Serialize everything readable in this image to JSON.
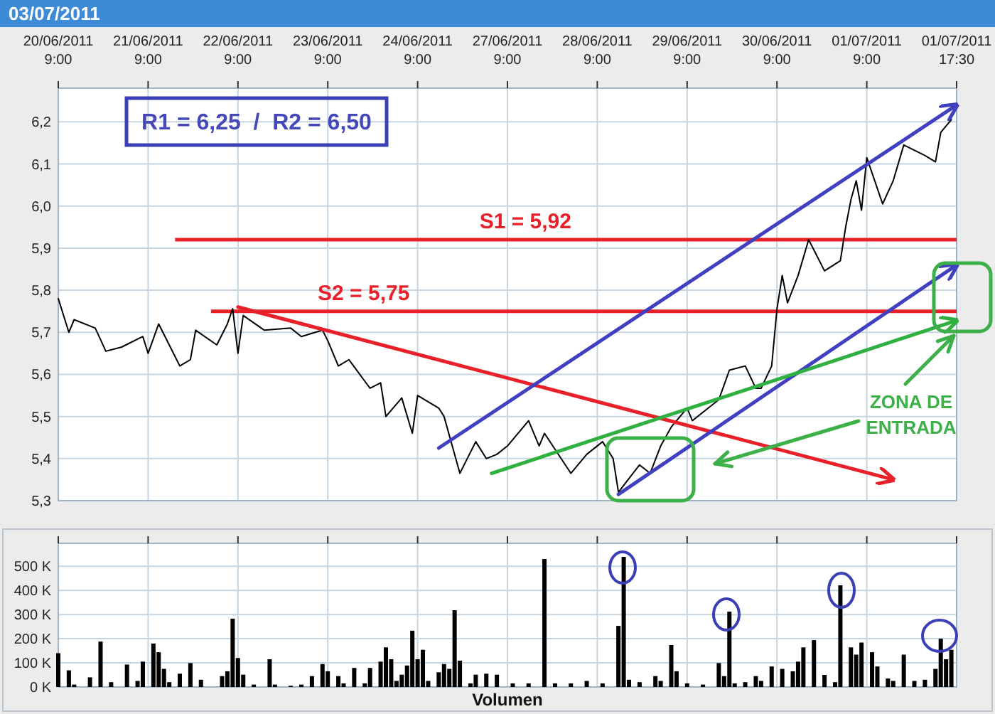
{
  "chart_data": [
    {
      "type": "line",
      "title": "03/07/2011",
      "ylim": [
        5.3,
        6.28
      ],
      "categories": [
        "20/06/2011\n9:00",
        null,
        null,
        null,
        null,
        null,
        null,
        null,
        null,
        null,
        null,
        null,
        null,
        null,
        null,
        null,
        null,
        "21/06/2011\n9:00",
        null,
        null,
        null,
        null,
        null,
        null,
        null,
        null,
        null,
        null,
        null,
        null,
        null,
        null,
        null,
        null,
        "22/06/2011\n9:00",
        null,
        null,
        null,
        null,
        null,
        null,
        null,
        null,
        null,
        null,
        null,
        null,
        null,
        null,
        null,
        null,
        "23/06/2011\n9:00",
        null,
        null,
        null,
        null,
        null,
        null,
        null,
        null,
        null,
        null,
        null,
        null,
        null,
        null,
        null,
        null,
        "24/06/2011\n9:00",
        null,
        null,
        null,
        null,
        null,
        null,
        null,
        null,
        null,
        null,
        null,
        null,
        null,
        null,
        null,
        null,
        "27/06/2011\n9:00",
        null,
        null,
        null,
        null,
        null,
        null,
        null,
        null,
        null,
        null,
        null,
        null,
        null,
        null,
        null,
        null,
        "28/06/2011\n9:00",
        null,
        null,
        null,
        null,
        null,
        null,
        null,
        null,
        null,
        null,
        null,
        null,
        null,
        null,
        null,
        null,
        "29/06/2011\n9:00",
        null,
        null,
        null,
        null,
        null,
        null,
        null,
        null,
        null,
        null,
        null,
        null,
        null,
        null,
        null,
        null,
        "30/06/2011\n9:00",
        null,
        null,
        null,
        null,
        null,
        null,
        null,
        null,
        null,
        null,
        null,
        null,
        null,
        null,
        null,
        null,
        "01/07/2011\n9:00",
        null,
        null,
        null,
        null,
        null,
        null,
        null,
        null,
        null,
        null,
        null,
        null,
        null,
        null,
        null,
        null,
        "01/07/2011\n17:30"
      ],
      "yticks": [
        {
          "value": 5.3,
          "label": "5,3"
        },
        {
          "value": 5.4,
          "label": "5,4"
        },
        {
          "value": 5.5,
          "label": "5,5"
        },
        {
          "value": 5.6,
          "label": "5,6"
        },
        {
          "value": 5.7,
          "label": "5,7"
        },
        {
          "value": 5.8,
          "label": "5,8"
        },
        {
          "value": 5.9,
          "label": "5,9"
        },
        {
          "value": 6.0,
          "label": "6,0"
        },
        {
          "value": 6.1,
          "label": "6,1"
        },
        {
          "value": 6.2,
          "label": "6,2"
        }
      ],
      "grid": true,
      "series": [
        {
          "color": "#000000",
          "values": [
            5.78,
            null,
            5.7,
            5.73,
            null,
            null,
            null,
            5.71,
            null,
            5.655,
            null,
            null,
            5.665,
            null,
            null,
            null,
            5.69,
            5.65,
            null,
            5.72,
            null,
            null,
            null,
            5.62,
            null,
            5.635,
            5.705,
            null,
            null,
            null,
            5.67,
            null,
            5.72,
            5.756,
            5.65,
            5.74,
            null,
            null,
            null,
            5.705,
            null,
            null,
            null,
            null,
            5.71,
            null,
            5.69,
            null,
            null,
            null,
            5.705,
            5.68,
            null,
            5.62,
            null,
            5.635,
            null,
            null,
            null,
            5.567,
            null,
            5.58,
            5.5,
            null,
            null,
            5.544,
            null,
            5.46,
            5.55,
            null,
            null,
            null,
            5.52,
            5.5,
            null,
            null,
            5.365,
            null,
            null,
            5.44,
            null,
            5.4,
            null,
            5.41,
            null,
            5.43,
            null,
            null,
            null,
            5.49,
            null,
            5.43,
            5.46,
            null,
            null,
            null,
            null,
            5.365,
            null,
            null,
            5.41,
            null,
            null,
            5.44,
            null,
            5.4,
            5.32,
            null,
            null,
            null,
            5.385,
            null,
            5.365,
            null,
            5.43,
            null,
            5.475,
            null,
            null,
            5.52,
            5.49,
            null,
            null,
            5.52,
            null,
            5.54,
            null,
            5.61,
            null,
            null,
            5.62,
            null,
            5.567,
            5.567,
            null,
            5.62,
            5.755,
            5.835,
            5.77,
            null,
            5.835,
            null,
            5.92,
            null,
            null,
            5.846,
            null,
            null,
            5.87,
            5.95,
            6.015,
            6.06,
            5.99,
            6.115,
            null,
            null,
            6.005,
            null,
            6.06,
            null,
            6.145,
            null,
            null,
            null,
            6.12,
            null,
            6.105,
            6.175,
            null,
            6.205,
            null
          ]
        },
        {
          "color": "#e8202a",
          "values": [
            null,
            null,
            null,
            null,
            null,
            null,
            null,
            null,
            null,
            null,
            null,
            null,
            null,
            null,
            null,
            null,
            null,
            null,
            null,
            null,
            null,
            null,
            null,
            null,
            null,
            null,
            null,
            null,
            null,
            null,
            null,
            null,
            null,
            null,
            5.76,
            null,
            null,
            null,
            null,
            null,
            null,
            null,
            null,
            null,
            null,
            null,
            null,
            null,
            null,
            null,
            null,
            null,
            null,
            null,
            null,
            null,
            null,
            null,
            null,
            null,
            null,
            null,
            null,
            null,
            null,
            null,
            null,
            null,
            null,
            null,
            null,
            null,
            null,
            null,
            null,
            null,
            null,
            null,
            null,
            null,
            null,
            null,
            null,
            null,
            null,
            null,
            null,
            null,
            null,
            null,
            null,
            null,
            null,
            null,
            null,
            null,
            null,
            null,
            null,
            null,
            null,
            null,
            null,
            null,
            null,
            null,
            null,
            null,
            null,
            null,
            null,
            null,
            null,
            null,
            null,
            null,
            null,
            null,
            null,
            null,
            null,
            null,
            null,
            null,
            null,
            null,
            null,
            null,
            null,
            null,
            null,
            null,
            null,
            null,
            null,
            null,
            null,
            null,
            null,
            null,
            null,
            null,
            null,
            null,
            null,
            null,
            null,
            null,
            null,
            null,
            null,
            null,
            null,
            null,
            null,
            null,
            null,
            null,
            5.35,
            null,
            null,
            null,
            null,
            null,
            null,
            null,
            null,
            null,
            null,
            null,
            null
          ]
        },
        {
          "color": "#4040c0",
          "values": [
            null,
            null,
            null,
            null,
            null,
            null,
            null,
            null,
            null,
            null,
            null,
            null,
            null,
            null,
            null,
            null,
            null,
            null,
            null,
            null,
            null,
            null,
            null,
            null,
            null,
            null,
            null,
            null,
            null,
            null,
            null,
            null,
            null,
            null,
            null,
            null,
            null,
            null,
            null,
            null,
            null,
            null,
            null,
            null,
            null,
            null,
            null,
            null,
            null,
            null,
            null,
            null,
            null,
            null,
            null,
            null,
            null,
            null,
            null,
            null,
            null,
            null,
            null,
            null,
            null,
            null,
            null,
            null,
            null,
            null,
            null,
            null,
            5.425,
            null,
            null,
            null,
            null,
            null,
            null,
            null,
            null,
            null,
            null,
            null,
            null,
            null,
            null,
            null,
            null,
            null,
            null,
            null,
            null,
            null,
            null,
            null,
            null,
            null,
            null,
            null,
            null,
            null,
            null,
            null,
            null,
            null,
            null,
            null,
            null,
            null,
            null,
            null,
            null,
            null,
            null,
            null,
            null,
            null,
            null,
            null,
            null,
            null,
            null,
            null,
            null,
            null,
            null,
            null,
            null,
            null,
            null,
            null,
            null,
            null,
            null,
            null,
            null,
            null,
            null,
            null,
            null,
            null,
            null,
            null,
            null,
            null,
            null,
            null,
            null,
            null,
            null,
            null,
            null,
            null,
            null,
            null,
            null,
            null,
            null,
            null,
            null,
            null,
            null,
            null,
            null,
            null,
            null,
            null,
            null,
            null,
            6.24
          ]
        },
        {
          "color": "#4040c0",
          "values": [
            null,
            null,
            null,
            null,
            null,
            null,
            null,
            null,
            null,
            null,
            null,
            null,
            null,
            null,
            null,
            null,
            null,
            null,
            null,
            null,
            null,
            null,
            null,
            null,
            null,
            null,
            null,
            null,
            null,
            null,
            null,
            null,
            null,
            null,
            null,
            null,
            null,
            null,
            null,
            null,
            null,
            null,
            null,
            null,
            null,
            null,
            null,
            null,
            null,
            null,
            null,
            null,
            null,
            null,
            null,
            null,
            null,
            null,
            null,
            null,
            null,
            null,
            null,
            null,
            null,
            null,
            null,
            null,
            null,
            null,
            null,
            null,
            null,
            null,
            null,
            null,
            null,
            null,
            null,
            null,
            null,
            null,
            null,
            null,
            null,
            null,
            null,
            null,
            null,
            null,
            null,
            null,
            null,
            null,
            null,
            null,
            null,
            null,
            null,
            null,
            null,
            null,
            null,
            null,
            null,
            null,
            5.315,
            null,
            null,
            null,
            null,
            null,
            null,
            null,
            null,
            null,
            null,
            null,
            null,
            null,
            null,
            null,
            null,
            null,
            null,
            null,
            null,
            null,
            null,
            null,
            null,
            null,
            null,
            null,
            null,
            null,
            null,
            null,
            null,
            null,
            null,
            null,
            null,
            null,
            null,
            null,
            null,
            null,
            null,
            null,
            null,
            null,
            null,
            null,
            null,
            null,
            null,
            null,
            null,
            null,
            null,
            null,
            null,
            null,
            null,
            null,
            null,
            null,
            null,
            null,
            5.86
          ]
        },
        {
          "color": "#30b040",
          "values": [
            null,
            null,
            null,
            null,
            null,
            null,
            null,
            null,
            null,
            null,
            null,
            null,
            null,
            null,
            null,
            null,
            null,
            null,
            null,
            null,
            null,
            null,
            null,
            null,
            null,
            null,
            null,
            null,
            null,
            null,
            null,
            null,
            null,
            null,
            null,
            null,
            null,
            null,
            null,
            null,
            null,
            null,
            null,
            null,
            null,
            null,
            null,
            null,
            null,
            null,
            null,
            null,
            null,
            null,
            null,
            null,
            null,
            null,
            null,
            null,
            null,
            null,
            null,
            null,
            null,
            null,
            null,
            null,
            null,
            null,
            null,
            null,
            null,
            null,
            null,
            null,
            null,
            null,
            null,
            null,
            null,
            null,
            5.365,
            null,
            null,
            null,
            null,
            null,
            null,
            null,
            null,
            null,
            null,
            null,
            null,
            null,
            null,
            null,
            null,
            null,
            null,
            null,
            null,
            null,
            null,
            null,
            null,
            null,
            null,
            null,
            null,
            null,
            null,
            null,
            null,
            null,
            null,
            null,
            null,
            null,
            null,
            null,
            null,
            null,
            null,
            null,
            null,
            null,
            null,
            null,
            null,
            null,
            null,
            null,
            null,
            null,
            null,
            null,
            null,
            null,
            null,
            null,
            null,
            null,
            null,
            null,
            null,
            null,
            null,
            null,
            null,
            null,
            null,
            null,
            null,
            null,
            null,
            null,
            null,
            null,
            null,
            null,
            null,
            null,
            null,
            null,
            null,
            null,
            null,
            null,
            5.728
          ]
        }
      ],
      "ref_lines": [
        {
          "axis": "y",
          "value": 5.92,
          "label": "S1 = 5,92",
          "color": "#e8202a"
        },
        {
          "axis": "y",
          "value": 5.75,
          "label": "S2 = 5,75",
          "color": "#e8202a"
        }
      ],
      "annotations": [
        "R1 = 6,25  /  R2 = 6,50",
        "ZONA DE ENTRADA"
      ]
    },
    {
      "type": "bar",
      "color": "#000000",
      "xlabel": "Volumen",
      "ylim": [
        0,
        595
      ],
      "grid": true,
      "tick_labels": "y",
      "categories": [
        null,
        null,
        null,
        null,
        null,
        null,
        null,
        null,
        null,
        null,
        null,
        null,
        null,
        null,
        null,
        null,
        null,
        null,
        null,
        null,
        null,
        null,
        null,
        null,
        null,
        null,
        null,
        null,
        null,
        null,
        null,
        null,
        null,
        null,
        null,
        null,
        null,
        null,
        null,
        null,
        null,
        null,
        null,
        null,
        null,
        null,
        null,
        null,
        null,
        null,
        null,
        null,
        null,
        null,
        null,
        null,
        null,
        null,
        null,
        null,
        null,
        null,
        null,
        null,
        null,
        null,
        null,
        null,
        null,
        null,
        null,
        null,
        null,
        null,
        null,
        null,
        null,
        null,
        null,
        null,
        null,
        null,
        null,
        null,
        null,
        null,
        null,
        null,
        null,
        null,
        null,
        null,
        null,
        null,
        null,
        null,
        null,
        null,
        null,
        null,
        null,
        null,
        null,
        null,
        null,
        null,
        null,
        null,
        null,
        null,
        null,
        null,
        null,
        null,
        null,
        null,
        null,
        null,
        null,
        null,
        null,
        null,
        null,
        null,
        null,
        null,
        null,
        null,
        null,
        null,
        null,
        null,
        null,
        null,
        null,
        null,
        null,
        null,
        null,
        null,
        null,
        null,
        null,
        null,
        null,
        null,
        null,
        null,
        null,
        null,
        null,
        null,
        null,
        null,
        null,
        null,
        null,
        null,
        null,
        null,
        null,
        null,
        null,
        null,
        null,
        null,
        null,
        null,
        null,
        null,
        null
      ],
      "yticks": [
        {
          "value": 0,
          "label": "0 K"
        },
        {
          "value": 100,
          "label": "100 K"
        },
        {
          "value": 200,
          "label": "200 K"
        },
        {
          "value": 300,
          "label": "300 K"
        },
        {
          "value": 400,
          "label": "400 K"
        },
        {
          "value": 500,
          "label": "500 K"
        }
      ],
      "values": [
        140,
        null,
        69,
        10,
        null,
        null,
        40,
        null,
        188,
        null,
        20,
        null,
        null,
        93,
        null,
        25,
        105,
        null,
        180,
        144,
        75,
        20,
        null,
        55,
        null,
        99,
        null,
        30,
        null,
        null,
        null,
        45,
        65,
        283,
        120,
        51,
        null,
        10,
        null,
        null,
        115,
        10,
        null,
        null,
        5,
        null,
        10,
        null,
        45,
        null,
        95,
        65,
        null,
        45,
        15,
        null,
        79,
        null,
        15,
        79,
        null,
        105,
        164,
        115,
        25,
        51,
        89,
        233,
        115,
        154,
        25,
        null,
        61,
        95,
        75,
        318,
        109,
        null,
        15,
        51,
        null,
        55,
        null,
        51,
        null,
        null,
        15,
        null,
        null,
        15,
        null,
        null,
        530,
        null,
        15,
        null,
        null,
        15,
        null,
        null,
        25,
        null,
        null,
        15,
        null,
        null,
        253,
        539,
        30,
        null,
        20,
        null,
        null,
        45,
        25,
        null,
        174,
        65,
        null,
        15,
        null,
        null,
        10,
        null,
        null,
        99,
        45,
        312,
        15,
        null,
        20,
        null,
        45,
        25,
        null,
        85,
        null,
        75,
        null,
        65,
        105,
        164,
        null,
        194,
        null,
        50,
        null,
        20,
        421,
        null,
        164,
        134,
        184,
        null,
        144,
        85,
        null,
        35,
        25,
        null,
        134,
        null,
        25,
        null,
        30,
        null,
        75,
        200,
        115,
        154,
        null
      ]
    }
  ]
}
